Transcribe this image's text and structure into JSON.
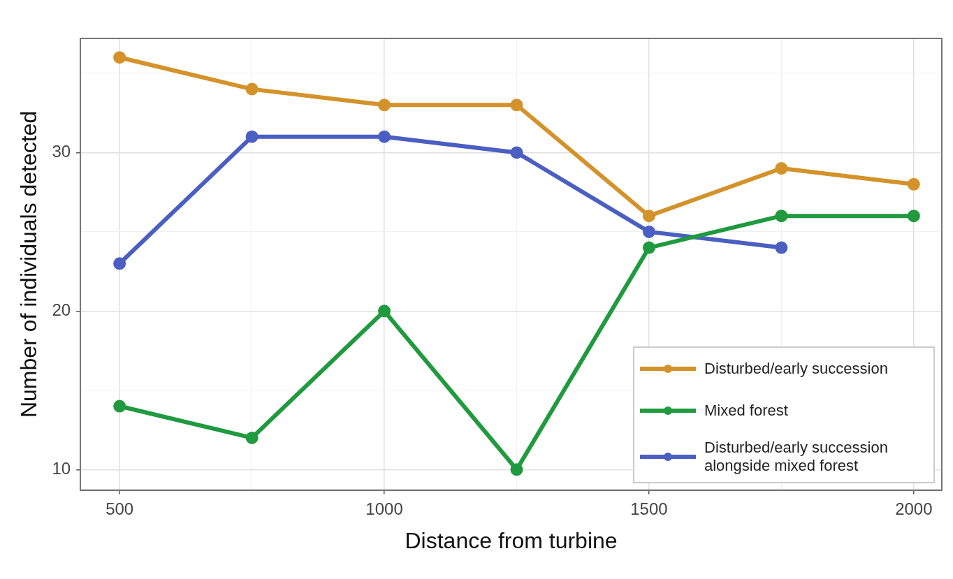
{
  "chart_data": {
    "type": "line",
    "xlabel": "Distance from turbine",
    "ylabel": "Number of individuals detected",
    "x": [
      500,
      750,
      1000,
      1250,
      1500,
      1750,
      2000
    ],
    "series": [
      {
        "name": "Disturbed/early succession",
        "color": "#d4922a",
        "values": [
          36,
          34,
          33,
          33,
          26,
          29,
          28
        ]
      },
      {
        "name": "Mixed forest",
        "color": "#1f9a3e",
        "values": [
          14,
          12,
          20,
          10,
          24,
          26,
          26
        ]
      },
      {
        "name": "Disturbed/early succession alongside mixed forest",
        "color": "#4a5fc1",
        "values": [
          23,
          31,
          31,
          30,
          25,
          24,
          null
        ]
      }
    ],
    "xlim": [
      426,
      2053
    ],
    "xticks": [
      500,
      {
        "value": 750,
        "label": null
      },
      1000,
      {
        "value": 1250,
        "label": null
      },
      1500,
      {
        "value": 1750,
        "label": null
      },
      2000
    ],
    "ylim": [
      8.7,
      37.2
    ],
    "yticks": [
      10,
      {
        "value": 15,
        "label": null
      },
      20,
      {
        "value": 25,
        "label": null
      },
      30,
      {
        "value": 35,
        "label": null
      }
    ],
    "grid": true,
    "legend": "bottom right",
    "marker": "circle",
    "line_style": "solid"
  }
}
